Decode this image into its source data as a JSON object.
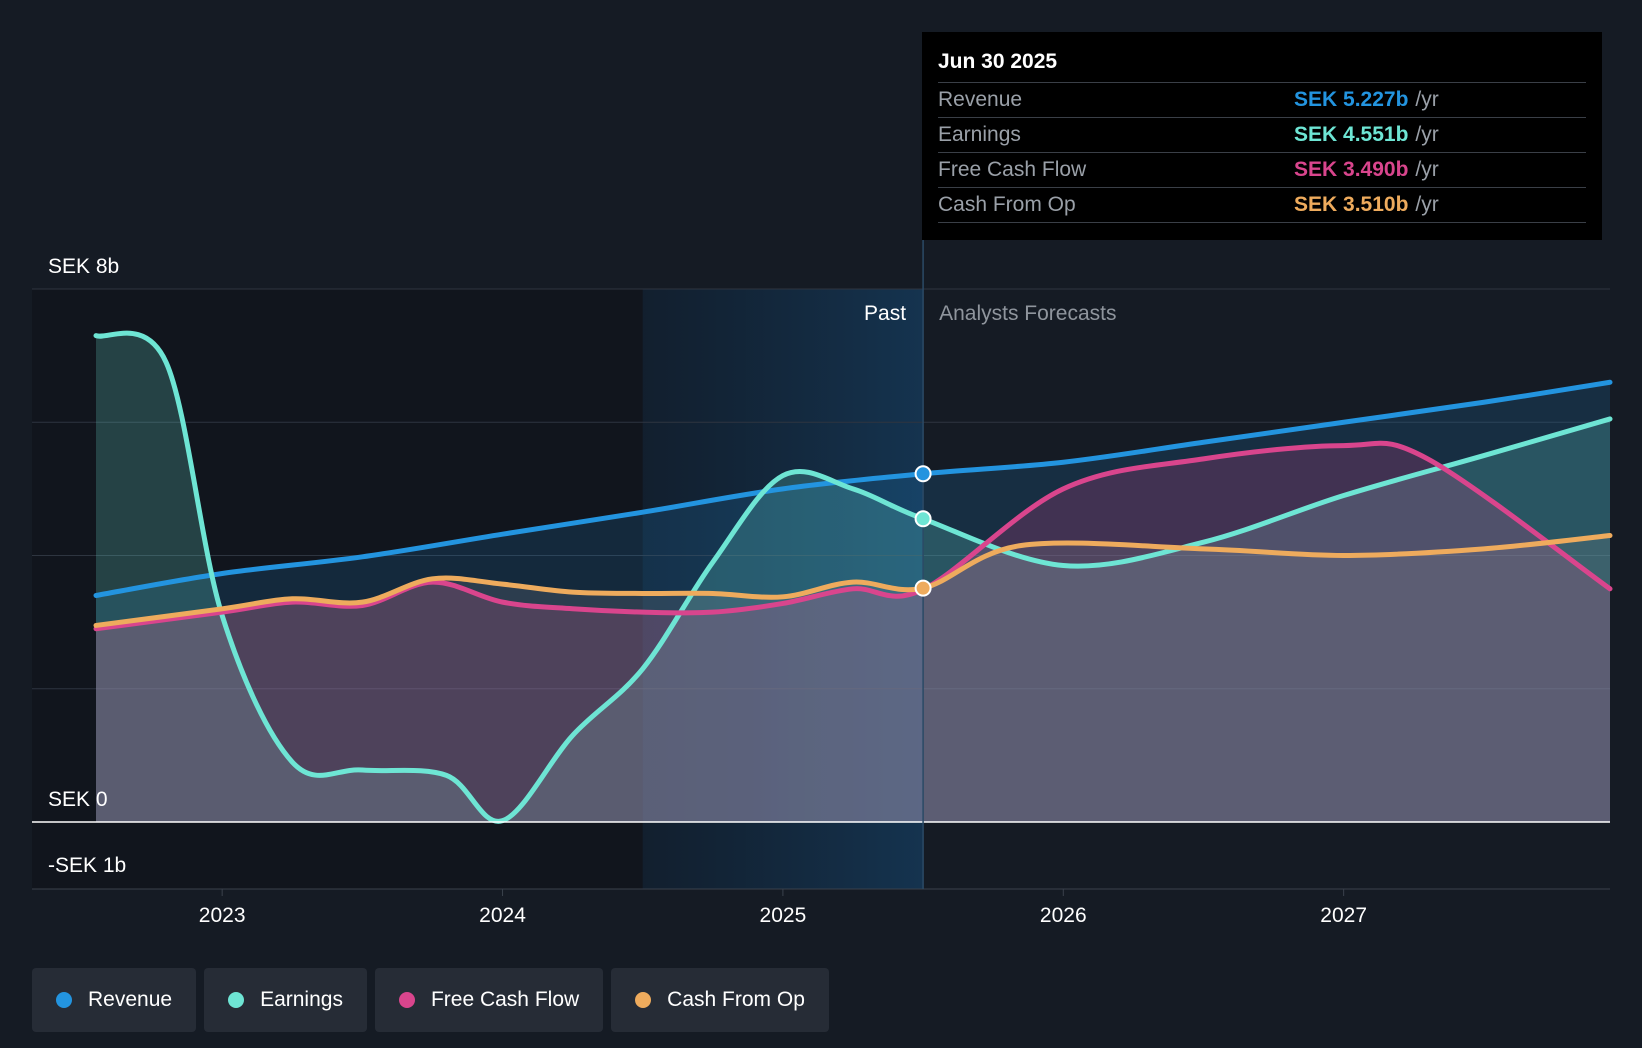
{
  "chart_data": {
    "type": "area",
    "x_range": [
      2022.55,
      2027.95
    ],
    "ylim": [
      -1,
      8
    ],
    "y_axis_labels": [
      {
        "value": 8,
        "label": "SEK 8b"
      },
      {
        "value": 0,
        "label": "SEK 0"
      },
      {
        "value": -1,
        "label": "-SEK 1b"
      }
    ],
    "x_ticks": [
      {
        "value": 2023,
        "label": "2023"
      },
      {
        "value": 2024,
        "label": "2024"
      },
      {
        "value": 2025,
        "label": "2025"
      },
      {
        "value": 2026,
        "label": "2026"
      },
      {
        "value": 2027,
        "label": "2027"
      }
    ],
    "past_label": "Past",
    "forecast_label": "Analysts Forecasts",
    "past_end": 2025.5,
    "highlight_start": 2024.5,
    "series": [
      {
        "name": "Revenue",
        "color": "#2394df",
        "points": [
          [
            2022.55,
            3.4
          ],
          [
            2023.0,
            3.73
          ],
          [
            2023.5,
            3.98
          ],
          [
            2024.0,
            4.32
          ],
          [
            2024.5,
            4.65
          ],
          [
            2025.0,
            5.0
          ],
          [
            2025.5,
            5.227
          ],
          [
            2026.0,
            5.4
          ],
          [
            2026.5,
            5.7
          ],
          [
            2027.0,
            6.0
          ],
          [
            2027.5,
            6.3
          ],
          [
            2027.95,
            6.6
          ]
        ]
      },
      {
        "name": "Earnings",
        "color": "#6ee5d4",
        "points": [
          [
            2022.55,
            7.3
          ],
          [
            2022.8,
            6.9
          ],
          [
            2023.0,
            3.1
          ],
          [
            2023.25,
            0.9
          ],
          [
            2023.5,
            0.78
          ],
          [
            2023.8,
            0.7
          ],
          [
            2024.0,
            0.02
          ],
          [
            2024.25,
            1.3
          ],
          [
            2024.5,
            2.3
          ],
          [
            2024.75,
            3.9
          ],
          [
            2025.0,
            5.2
          ],
          [
            2025.25,
            5.0
          ],
          [
            2025.5,
            4.551
          ],
          [
            2026.0,
            3.85
          ],
          [
            2026.5,
            4.2
          ],
          [
            2027.0,
            4.9
          ],
          [
            2027.5,
            5.5
          ],
          [
            2027.95,
            6.05
          ]
        ]
      },
      {
        "name": "Free Cash Flow",
        "color": "#d9458d",
        "points": [
          [
            2022.55,
            2.9
          ],
          [
            2023.0,
            3.15
          ],
          [
            2023.25,
            3.3
          ],
          [
            2023.5,
            3.25
          ],
          [
            2023.75,
            3.6
          ],
          [
            2024.0,
            3.3
          ],
          [
            2024.25,
            3.2
          ],
          [
            2024.5,
            3.15
          ],
          [
            2024.75,
            3.15
          ],
          [
            2025.0,
            3.28
          ],
          [
            2025.25,
            3.5
          ],
          [
            2025.5,
            3.49
          ],
          [
            2026.0,
            5.0
          ],
          [
            2026.5,
            5.45
          ],
          [
            2027.0,
            5.65
          ],
          [
            2027.3,
            5.45
          ],
          [
            2027.95,
            3.5
          ]
        ]
      },
      {
        "name": "Cash From Op",
        "color": "#eeab5d",
        "points": [
          [
            2022.55,
            2.95
          ],
          [
            2023.0,
            3.2
          ],
          [
            2023.25,
            3.35
          ],
          [
            2023.5,
            3.3
          ],
          [
            2023.75,
            3.65
          ],
          [
            2024.0,
            3.57
          ],
          [
            2024.25,
            3.45
          ],
          [
            2024.5,
            3.43
          ],
          [
            2024.75,
            3.43
          ],
          [
            2025.0,
            3.38
          ],
          [
            2025.25,
            3.6
          ],
          [
            2025.5,
            3.51
          ],
          [
            2025.85,
            4.15
          ],
          [
            2026.5,
            4.1
          ],
          [
            2027.0,
            4.0
          ],
          [
            2027.5,
            4.1
          ],
          [
            2027.95,
            4.3
          ]
        ]
      }
    ],
    "tooltip": {
      "date": "Jun 30 2025",
      "rows": [
        {
          "name": "Revenue",
          "value": "SEK 5.227b",
          "unit": "/yr",
          "color": "#2394df"
        },
        {
          "name": "Earnings",
          "value": "SEK 4.551b",
          "unit": "/yr",
          "color": "#6ee5d4"
        },
        {
          "name": "Free Cash Flow",
          "value": "SEK 3.490b",
          "unit": "/yr",
          "color": "#d9458d"
        },
        {
          "name": "Cash From Op",
          "value": "SEK 3.510b",
          "unit": "/yr",
          "color": "#eeab5d"
        }
      ]
    },
    "markers": [
      {
        "series": "Revenue",
        "x": 2025.5,
        "y": 5.227
      },
      {
        "series": "Earnings",
        "x": 2025.5,
        "y": 4.551
      },
      {
        "series": "Cash From Op",
        "x": 2025.5,
        "y": 3.51
      }
    ]
  },
  "legend": [
    {
      "label": "Revenue",
      "color": "#2394df"
    },
    {
      "label": "Earnings",
      "color": "#6ee5d4"
    },
    {
      "label": "Free Cash Flow",
      "color": "#d9458d"
    },
    {
      "label": "Cash From Op",
      "color": "#eeab5d"
    }
  ]
}
